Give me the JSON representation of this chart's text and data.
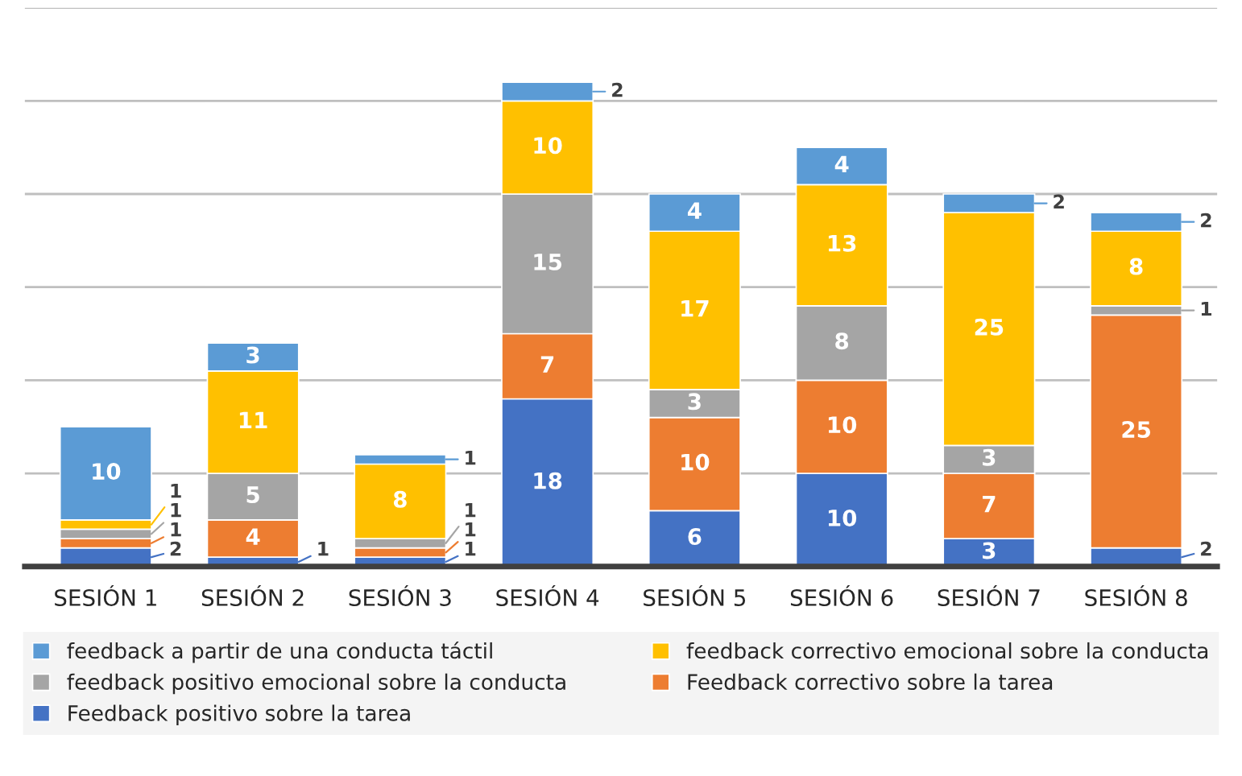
{
  "chart_data": {
    "type": "bar",
    "stacked": true,
    "categories": [
      "SESIÓN 1",
      "SESIÓN 2",
      "SESIÓN 3",
      "SESIÓN 4",
      "SESIÓN 5",
      "SESIÓN 6",
      "SESIÓN 7",
      "SESIÓN 8"
    ],
    "series": [
      {
        "name": "Feedback positivo sobre la tarea",
        "color": "#4472c4",
        "values": [
          2,
          1,
          1,
          18,
          6,
          10,
          3,
          2
        ]
      },
      {
        "name": "Feedback correctivo sobre la tarea",
        "color": "#ed7d31",
        "values": [
          1,
          4,
          1,
          7,
          10,
          10,
          7,
          25
        ]
      },
      {
        "name": "feedback positivo emocional sobre la conducta",
        "color": "#a5a5a5",
        "values": [
          1,
          5,
          1,
          15,
          3,
          8,
          3,
          1
        ]
      },
      {
        "name": "feedback correctivo emocional sobre la conducta",
        "color": "#ffc000",
        "values": [
          1,
          11,
          8,
          10,
          17,
          13,
          25,
          8
        ]
      },
      {
        "name": "feedback a partir de una conducta táctil",
        "color": "#5b9bd5",
        "values": [
          10,
          3,
          1,
          2,
          4,
          4,
          2,
          2
        ]
      }
    ],
    "ylim": [
      0,
      60
    ],
    "yticks": [
      {
        "value": 0,
        "label": null
      },
      {
        "value": 10,
        "label": null
      },
      {
        "value": 20,
        "label": null
      },
      {
        "value": 30,
        "label": null
      },
      {
        "value": 40,
        "label": null
      },
      {
        "value": 50,
        "label": null
      },
      {
        "value": 60,
        "label": null
      }
    ],
    "grid": "y",
    "tick_labels": "x",
    "data_labels": true,
    "legend": "bottom"
  }
}
